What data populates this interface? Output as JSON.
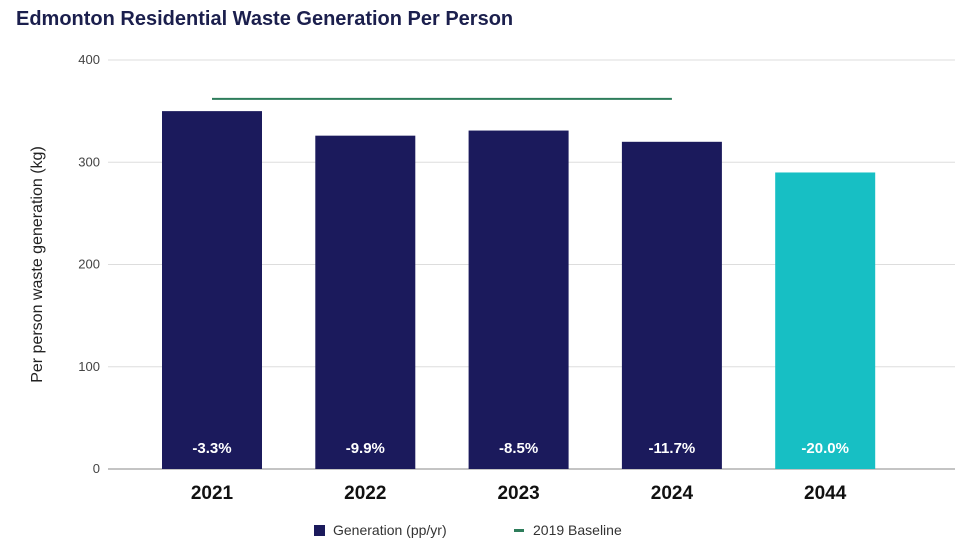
{
  "chart_data": {
    "type": "bar",
    "title": "Edmonton Residential Waste Generation Per Person",
    "xlabel": "",
    "ylabel": "Per person waste generation (kg)",
    "ylim": [
      0,
      400
    ],
    "yticks": [
      0,
      100,
      200,
      300,
      400
    ],
    "grid": true,
    "legend_placement": "bottom",
    "categories": [
      "2021",
      "2022",
      "2023",
      "2024",
      "2044"
    ],
    "series": [
      {
        "name": "Generation (pp/yr)",
        "values": [
          350,
          326,
          331,
          320,
          290
        ],
        "color": "#1b1a5c",
        "highlight_color": "#17bfc4",
        "highlight_index": 4,
        "data_labels": [
          "-3.3%",
          "-9.9%",
          "-8.5%",
          "-11.7%",
          "-20.0%"
        ]
      },
      {
        "name": "2019 Baseline",
        "type": "line",
        "value": 362,
        "span": [
          "2021",
          "2024"
        ],
        "color": "#2e7d5b"
      }
    ]
  }
}
